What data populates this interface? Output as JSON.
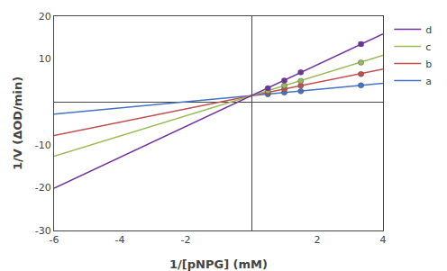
{
  "chart_data": {
    "type": "scatter",
    "xlabel": "1/[pNPG] (mM)",
    "ylabel": "1/V (ΔOD/min)",
    "xlim": [
      -6,
      4
    ],
    "ylim": [
      -30,
      20
    ],
    "xticks": [
      -6,
      -4,
      -2,
      2,
      4
    ],
    "yticks": [
      -30,
      -20,
      -10,
      10,
      20
    ],
    "grid": false,
    "legend": "right",
    "series": [
      {
        "name": "a",
        "color": "#4472C4",
        "x": [
          0.5,
          1.0,
          1.5,
          3.33
        ],
        "values": [
          1.8,
          2.2,
          2.5,
          3.85
        ],
        "yerr": [
          0.12,
          0.12,
          0.12,
          0.18
        ],
        "line": {
          "x": [
            -6,
            4
          ],
          "values": [
            -2.87,
            4.33
          ]
        }
      },
      {
        "name": "b",
        "color": "#C0504D",
        "x": [
          0.5,
          1.0,
          1.5,
          3.33
        ],
        "values": [
          2.2,
          3.0,
          3.8,
          6.5
        ],
        "yerr": [
          0.18,
          0.18,
          0.2,
          0.25
        ],
        "line": {
          "x": [
            -6,
            4
          ],
          "values": [
            -7.85,
            7.65
          ]
        }
      },
      {
        "name": "c",
        "color": "#9BBB59",
        "x": [
          0.5,
          1.0,
          1.5,
          3.33
        ],
        "values": [
          2.6,
          3.8,
          4.9,
          9.2
        ],
        "yerr": [
          0.2,
          0.22,
          0.22,
          0.3
        ],
        "line": {
          "x": [
            -6,
            4
          ],
          "values": [
            -12.65,
            10.85
          ]
        }
      },
      {
        "name": "d",
        "color": "#7030A0",
        "x": [
          0.5,
          1.0,
          1.5,
          3.33
        ],
        "values": [
          3.2,
          5.0,
          6.9,
          13.5
        ],
        "yerr": [
          0.25,
          0.28,
          0.3,
          0.4
        ],
        "line": {
          "x": [
            -6,
            4
          ],
          "values": [
            -20.15,
            15.85
          ]
        }
      }
    ]
  }
}
